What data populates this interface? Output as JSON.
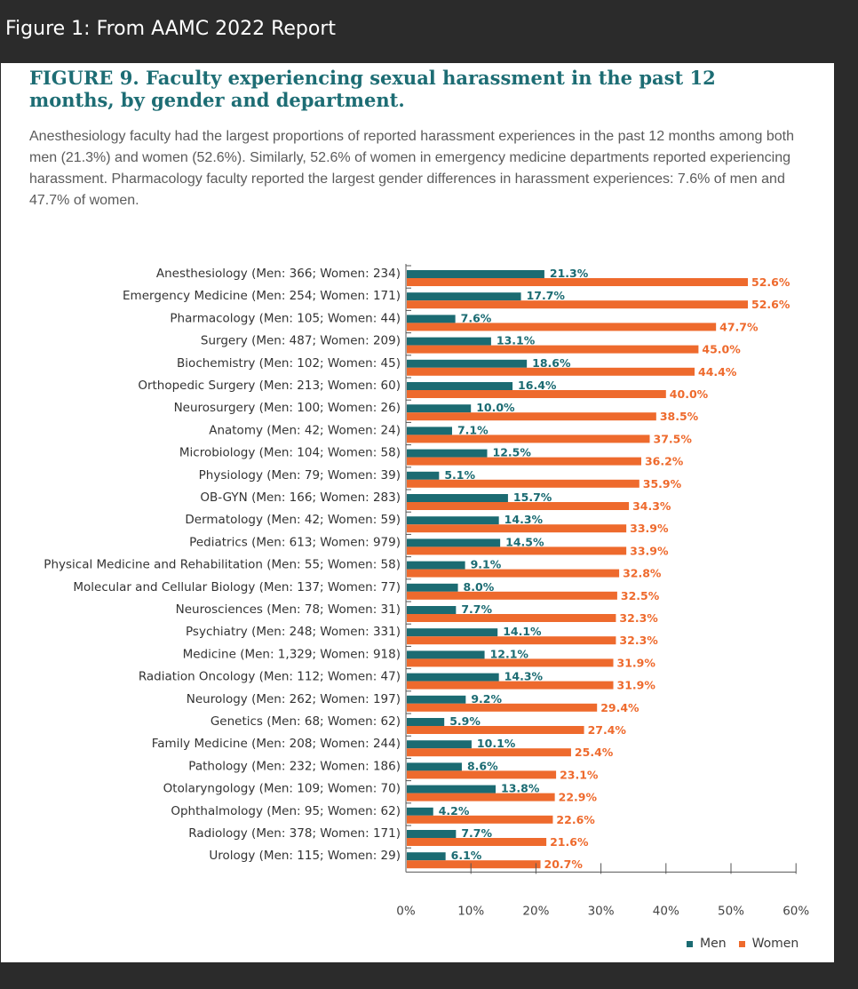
{
  "caption": "Figure 1: From AAMC 2022 Report",
  "figure": {
    "title": "FIGURE 9. Faculty experiencing sexual harassment in the past 12 months, by gender and department.",
    "description": "Anesthesiology faculty had the largest proportions of reported harassment experiences in the past 12 months among both men (21.3%) and women (52.6%). Similarly, 52.6% of women in emergency medicine departments reported experiencing harassment. Pharmacology faculty reported the largest gender differences in harassment experiences: 7.6% of men and 47.7% of women."
  },
  "colors": {
    "men": "#1b6b72",
    "women": "#ee6a2d",
    "title": "#1d6d74"
  },
  "chart_data": {
    "type": "bar",
    "orientation": "horizontal",
    "title": "Faculty experiencing sexual harassment in the past 12 months, by gender and department",
    "categories": [
      "Anesthesiology (Men: 366; Women: 234)",
      "Emergency Medicine (Men: 254; Women: 171)",
      "Pharmacology (Men: 105; Women: 44)",
      "Surgery (Men: 487; Women: 209)",
      "Biochemistry (Men: 102; Women: 45)",
      "Orthopedic Surgery (Men: 213; Women: 60)",
      "Neurosurgery (Men: 100; Women: 26)",
      "Anatomy (Men: 42; Women: 24)",
      "Microbiology (Men: 104; Women: 58)",
      "Physiology (Men: 79; Women: 39)",
      "OB-GYN (Men: 166; Women: 283)",
      "Dermatology (Men: 42; Women: 59)",
      "Pediatrics (Men: 613; Women: 979)",
      "Physical Medicine and Rehabilitation (Men: 55; Women: 58)",
      "Molecular and Cellular Biology (Men: 137; Women: 77)",
      "Neurosciences (Men: 78; Women: 31)",
      "Psychiatry (Men: 248; Women: 331)",
      "Medicine (Men: 1,329; Women: 918)",
      "Radiation Oncology (Men: 112; Women: 47)",
      "Neurology (Men: 262; Women: 197)",
      "Genetics (Men: 68; Women: 62)",
      "Family Medicine (Men: 208; Women: 244)",
      "Pathology (Men: 232; Women: 186)",
      "Otolaryngology (Men: 109; Women: 70)",
      "Ophthalmology (Men: 95; Women: 62)",
      "Radiology (Men: 378; Women: 171)",
      "Urology (Men: 115; Women: 29)"
    ],
    "series": [
      {
        "name": "Men",
        "values": [
          21.3,
          17.7,
          7.6,
          13.1,
          18.6,
          16.4,
          10.0,
          7.1,
          12.5,
          5.1,
          15.7,
          14.3,
          14.5,
          9.1,
          8.0,
          7.7,
          14.1,
          12.1,
          14.3,
          9.2,
          5.9,
          10.1,
          8.6,
          13.8,
          4.2,
          7.7,
          6.1
        ]
      },
      {
        "name": "Women",
        "values": [
          52.6,
          52.6,
          47.7,
          45.0,
          44.4,
          40.0,
          38.5,
          37.5,
          36.2,
          35.9,
          34.3,
          33.9,
          33.9,
          32.8,
          32.5,
          32.3,
          32.3,
          31.9,
          31.9,
          29.4,
          27.4,
          25.4,
          23.1,
          22.9,
          22.6,
          21.6,
          20.7
        ]
      }
    ],
    "xlim": [
      0,
      60
    ],
    "xticks": [
      "0%",
      "10%",
      "20%",
      "30%",
      "40%",
      "50%",
      "60%"
    ],
    "legend": [
      "Men",
      "Women"
    ],
    "legend_position": "bottom-right"
  }
}
